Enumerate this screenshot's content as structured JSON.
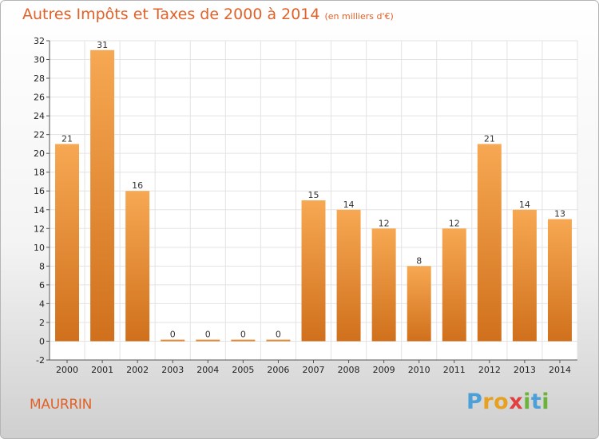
{
  "header": {
    "title": "Autres Impôts et Taxes de 2000 à 2014",
    "unit": "(en milliers d'€)"
  },
  "footer": {
    "commune": "MAURRIN",
    "logo_text": "Proxiti"
  },
  "colors": {
    "title": "#e0622a",
    "bar_top": "#f7a852",
    "bar_bottom": "#d0701c",
    "grid": "#e3e3e3"
  },
  "chart_data": {
    "type": "bar",
    "title": "Autres Impôts et Taxes de 2000 à 2014",
    "xlabel": "",
    "ylabel": "",
    "categories": [
      "2000",
      "2001",
      "2002",
      "2003",
      "2004",
      "2005",
      "2006",
      "2007",
      "2008",
      "2009",
      "2010",
      "2011",
      "2012",
      "2013",
      "2014"
    ],
    "values": [
      21,
      31,
      16,
      0,
      0,
      0,
      0,
      15,
      14,
      12,
      8,
      12,
      21,
      14,
      13
    ],
    "ylim": [
      -2,
      32
    ],
    "yticks": [
      -2,
      0,
      2,
      4,
      6,
      8,
      10,
      12,
      14,
      16,
      18,
      20,
      22,
      24,
      26,
      28,
      30,
      32
    ],
    "grid": true,
    "data_labels": true
  }
}
